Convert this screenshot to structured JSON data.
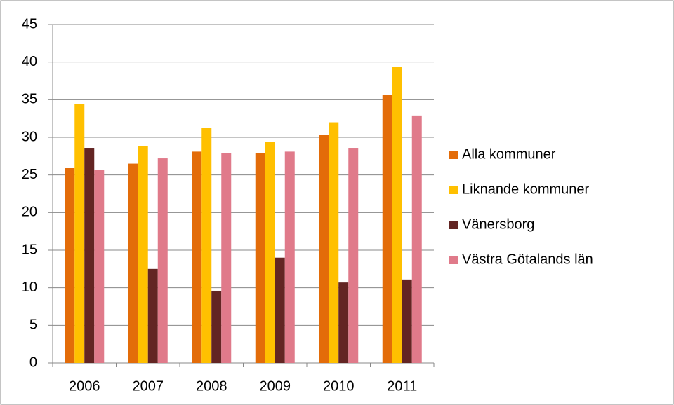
{
  "chart_data": {
    "type": "bar",
    "categories": [
      "2006",
      "2007",
      "2008",
      "2009",
      "2010",
      "2011"
    ],
    "series": [
      {
        "name": "Alla kommuner",
        "color": "#e36c09",
        "values": [
          25.9,
          26.5,
          28.1,
          27.9,
          30.3,
          35.6
        ]
      },
      {
        "name": "Liknande kommuner",
        "color": "#ffc000",
        "values": [
          34.4,
          28.8,
          31.3,
          29.4,
          32.0,
          39.4
        ]
      },
      {
        "name": "Vänersborg",
        "color": "#632523",
        "values": [
          28.6,
          12.5,
          9.6,
          14.0,
          10.7,
          11.1
        ]
      },
      {
        "name": "Västra Götalands län",
        "color": "#e07a8a",
        "values": [
          25.7,
          27.2,
          27.9,
          28.1,
          28.6,
          32.9
        ]
      }
    ],
    "ylim": [
      0,
      45
    ],
    "yticks": [
      0,
      5,
      10,
      15,
      20,
      25,
      30,
      35,
      40,
      45
    ],
    "grid": true,
    "legend": "right"
  }
}
